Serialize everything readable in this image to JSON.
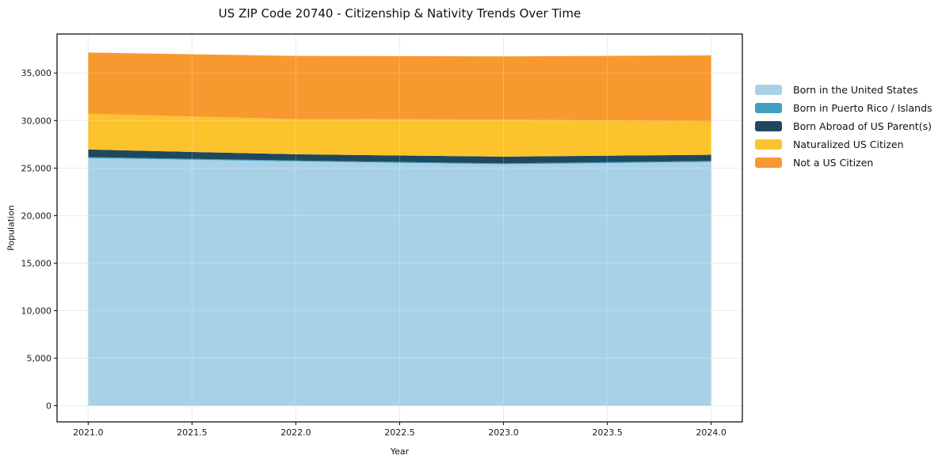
{
  "chart_data": {
    "type": "area",
    "stacked": true,
    "title": "US ZIP Code 20740 - Citizenship & Nativity Trends Over Time",
    "xlabel": "Year",
    "ylabel": "Population",
    "x": [
      2021,
      2022,
      2023,
      2024
    ],
    "series": [
      {
        "name": "Born in the United States",
        "color": "#A8D1E7",
        "values": [
          26050,
          25700,
          25400,
          25650
        ]
      },
      {
        "name": "Born in Puerto Rico / Islands",
        "color": "#41A0C0",
        "values": [
          100,
          100,
          100,
          100
        ]
      },
      {
        "name": "Born Abroad of US Parent(s)",
        "color": "#1E485E",
        "values": [
          800,
          650,
          700,
          650
        ]
      },
      {
        "name": "Naturalized US Citizen",
        "color": "#FDC32D",
        "values": [
          3750,
          3700,
          3900,
          3500
        ]
      },
      {
        "name": "Not a US Citizen",
        "color": "#F8992F",
        "values": [
          6450,
          6650,
          6650,
          6950
        ]
      }
    ],
    "totals_by_year": [
      37150,
      36800,
      36750,
      36850
    ],
    "x_ticks": [
      2021.0,
      2021.5,
      2022.0,
      2022.5,
      2023.0,
      2023.5,
      2024.0
    ],
    "y_ticks": [
      0,
      5000,
      10000,
      15000,
      20000,
      25000,
      30000,
      35000
    ],
    "x_range": [
      2020.85,
      2024.15
    ],
    "y_range": [
      -1700,
      39100
    ],
    "grid": true,
    "legend_position": "right",
    "colors": {
      "grid": "#e7e7e7",
      "spine": "#000000",
      "text": "#1a1a1a"
    }
  }
}
